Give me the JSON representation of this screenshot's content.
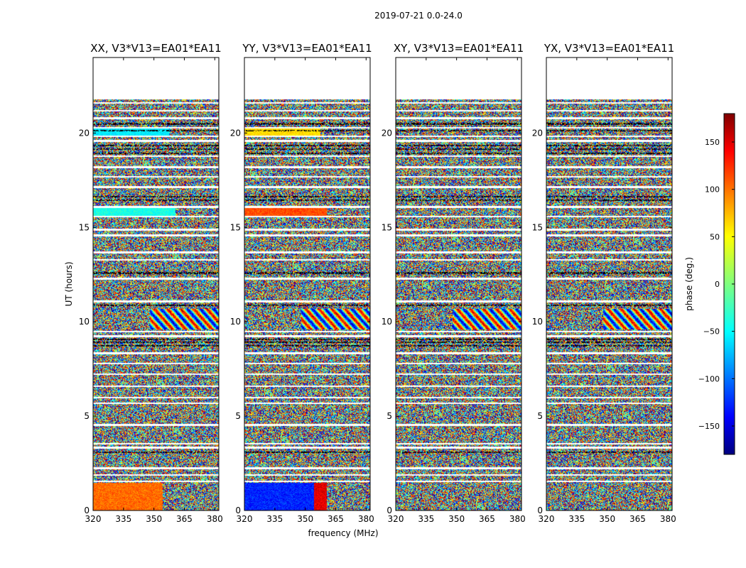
{
  "figure": {
    "suptitle": "2019-07-21 0.0-24.0"
  },
  "chart_data": {
    "type": "heatmap",
    "xlabel": "frequency (MHz)",
    "ylabel": "UT (hours)",
    "xlim": [
      320,
      382
    ],
    "ylim": [
      0,
      24
    ],
    "xticks": [
      320,
      335,
      350,
      365,
      380
    ],
    "yticks": [
      0,
      5,
      10,
      15,
      20
    ],
    "panels": [
      {
        "title": "XX, V3*V13=EA01*EA11",
        "mode": "xx"
      },
      {
        "title": "YY, V3*V13=EA01*EA11",
        "mode": "yy"
      },
      {
        "title": "XY, V3*V13=EA01*EA11",
        "mode": "cross"
      },
      {
        "title": "YX, V3*V13=EA01*EA11",
        "mode": "cross"
      }
    ],
    "colorbar": {
      "label": "phase (deg.)",
      "range": [
        -180,
        180
      ],
      "ticks": [
        150,
        100,
        50,
        0,
        -50,
        -100,
        -150
      ],
      "tick_labels": [
        "150",
        "100",
        "50",
        "0",
        "−50",
        "−100",
        "−150"
      ],
      "colormap": "jet"
    },
    "data_coverage_ut_end": 21.8
  }
}
